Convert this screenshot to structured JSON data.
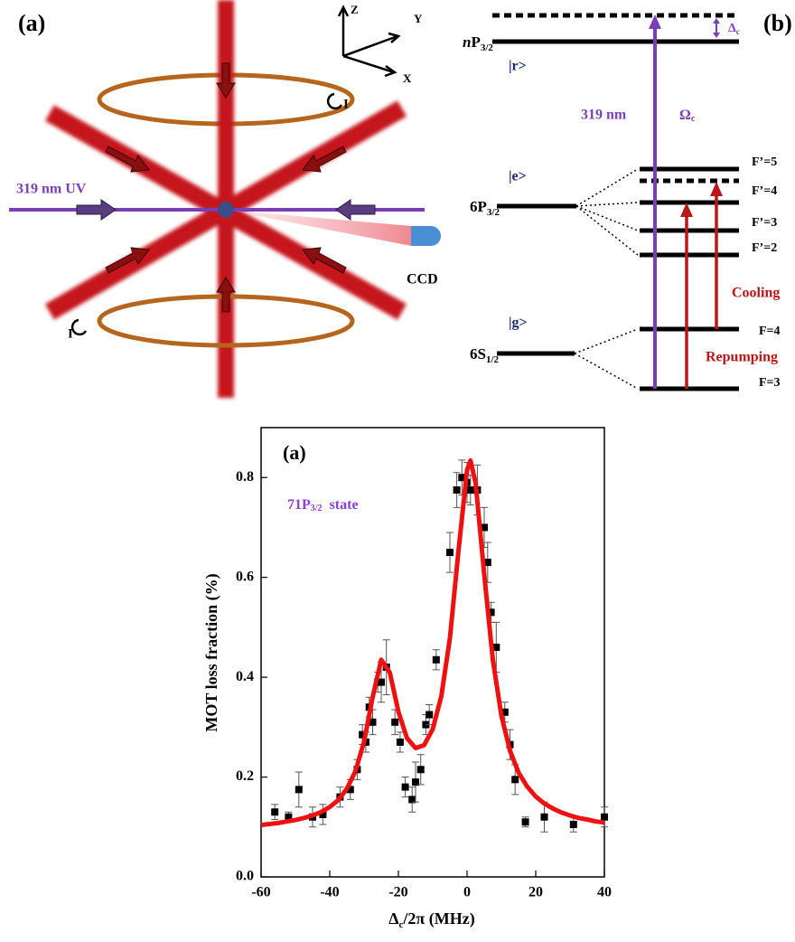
{
  "panel_a": {
    "title": "(a)",
    "axis_z": "Z",
    "axis_y": "Y",
    "axis_x": "X",
    "current_top": "I",
    "current_bottom": "I",
    "uv_label": "319 nm UV",
    "camera": "CCD"
  },
  "panel_b": {
    "title": "(b)",
    "np_level": {
      "italic": "n",
      "main": "P",
      "sub": "3/2"
    },
    "r_state": "|r>",
    "uv_label": "319 nm",
    "coupling": {
      "main": "Ω",
      "sub": "c"
    },
    "detuning": {
      "main": "Δ",
      "sub": "c"
    },
    "e_state": "|e>",
    "p_level": {
      "main": "6P",
      "sub": "3/2"
    },
    "g_state": "|g>",
    "s_level": {
      "main": "6S",
      "sub": "1/2"
    },
    "f5": "F’=5",
    "f4p": "F’=4",
    "f3p": "F’=3",
    "f2p": "F’=2",
    "f4": "F=4",
    "f3": "F=3",
    "cooling": "Cooling",
    "repumping": "Repumping"
  },
  "chart_data": {
    "type": "scatter",
    "title": "(a)",
    "annotation": {
      "main": "71P",
      "sub": "3/2",
      "tail": "state"
    },
    "xlabel": {
      "main": "Δ",
      "sub": "c",
      "tail": "/2π (MHz)"
    },
    "ylabel": "MOT loss fraction (%)",
    "xlim": [
      -60,
      40
    ],
    "xticks": [
      -60,
      -40,
      -20,
      0,
      20,
      40
    ],
    "ylim": [
      0,
      0.9
    ],
    "yticks": [
      {
        "value": 0,
        "label": "0.0"
      },
      0.2,
      0.4,
      0.6,
      0.8
    ],
    "series": [
      {
        "type": "scatter",
        "color": "#000000",
        "x": [
          -56,
          -52,
          -49,
          -45,
          -42,
          -37,
          -34,
          -32,
          -30.5,
          -29.5,
          -28.5,
          -27.5,
          -26,
          -25,
          -23.5,
          -21,
          -19.5,
          -18,
          -16,
          -15,
          -13.5,
          -12,
          -11,
          -9,
          -5,
          -3,
          -1.5,
          0,
          1,
          3,
          5,
          6,
          7,
          8.5,
          11,
          12.5,
          14,
          17,
          22.5,
          31,
          40
        ],
        "values": [
          0.13,
          0.12,
          0.175,
          0.12,
          0.125,
          0.16,
          0.175,
          0.215,
          0.285,
          0.27,
          0.34,
          0.31,
          0.39,
          0.39,
          0.42,
          0.31,
          0.27,
          0.18,
          0.155,
          0.19,
          0.215,
          0.305,
          0.325,
          0.435,
          0.65,
          0.775,
          0.8,
          0.79,
          0.775,
          0.775,
          0.7,
          0.63,
          0.53,
          0.46,
          0.33,
          0.265,
          0.195,
          0.11,
          0.12,
          0.105,
          0.12
        ],
        "errors": [
          0.015,
          0.01,
          0.035,
          0.02,
          0.02,
          0.02,
          0.02,
          0.02,
          0.02,
          0.02,
          0.02,
          0.025,
          0.02,
          0.04,
          0.055,
          0.025,
          0.02,
          0.02,
          0.025,
          0.04,
          0.03,
          0.02,
          0.02,
          0.02,
          0.04,
          0.035,
          0.035,
          0.04,
          0.03,
          0.05,
          0.04,
          0.04,
          0.02,
          0.05,
          0.02,
          0.03,
          0.03,
          0.01,
          0.03,
          0.015,
          0.02
        ]
      },
      {
        "type": "line",
        "color": "#ee1111",
        "x": [
          -60,
          -57.5,
          -55,
          -52.5,
          -50,
          -47.5,
          -45,
          -42.5,
          -40,
          -37.5,
          -35,
          -32.5,
          -30,
          -27.5,
          -25,
          -22.5,
          -20,
          -17.5,
          -15,
          -12.5,
          -10,
          -7.5,
          -5,
          -2.5,
          0,
          1,
          2.5,
          5,
          7.5,
          10,
          12.5,
          15,
          17.5,
          20,
          22.5,
          25,
          27.5,
          30,
          32.5,
          35,
          37.5,
          40
        ],
        "values": [
          0.104,
          0.106,
          0.108,
          0.111,
          0.114,
          0.118,
          0.123,
          0.13,
          0.14,
          0.154,
          0.177,
          0.212,
          0.271,
          0.36,
          0.435,
          0.409,
          0.331,
          0.278,
          0.258,
          0.264,
          0.296,
          0.362,
          0.478,
          0.653,
          0.815,
          0.834,
          0.789,
          0.606,
          0.435,
          0.323,
          0.253,
          0.209,
          0.181,
          0.161,
          0.147,
          0.137,
          0.129,
          0.123,
          0.118,
          0.115,
          0.111,
          0.109
        ]
      }
    ]
  }
}
